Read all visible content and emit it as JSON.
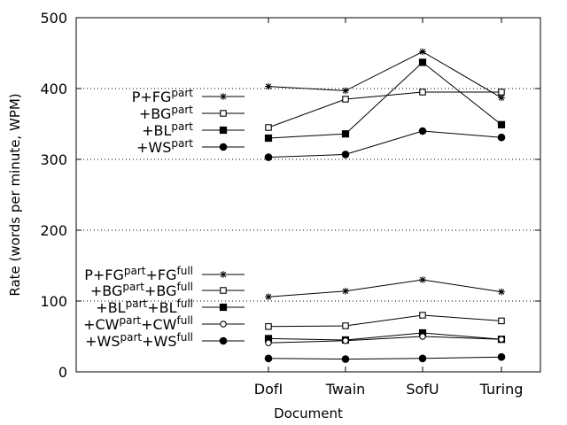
{
  "chart_data": {
    "type": "line",
    "xlabel": "Document",
    "ylabel": "Rate (words per minute, WPM)",
    "categories": [
      "DofI",
      "Twain",
      "SofU",
      "Turing"
    ],
    "ylim": [
      0,
      500
    ],
    "yticks": [
      0,
      100,
      200,
      300,
      400,
      500
    ],
    "grid": "horizontal-dotted",
    "legend_placement": "left",
    "series": [
      {
        "name": "P+FG",
        "name_parts": [
          {
            "t": "P+FG"
          },
          {
            "t": "part",
            "sup": true
          }
        ],
        "marker": "star",
        "values": [
          403,
          397,
          452,
          387
        ]
      },
      {
        "name": "+BG",
        "name_parts": [
          {
            "t": "+BG"
          },
          {
            "t": "part",
            "sup": true
          }
        ],
        "marker": "open-square",
        "values": [
          345,
          385,
          395,
          395
        ]
      },
      {
        "name": "+BL",
        "name_parts": [
          {
            "t": "+BL"
          },
          {
            "t": "part",
            "sup": true
          }
        ],
        "marker": "filled-square",
        "values": [
          330,
          336,
          437,
          349
        ]
      },
      {
        "name": "+WS",
        "name_parts": [
          {
            "t": "+WS"
          },
          {
            "t": "part",
            "sup": true
          }
        ],
        "marker": "filled-circle",
        "values": [
          303,
          307,
          340,
          331
        ]
      },
      {
        "name": "P+FG+FG",
        "name_parts": [
          {
            "t": "P+FG"
          },
          {
            "t": "part",
            "sup": true
          },
          {
            "t": "+FG"
          },
          {
            "t": "full",
            "sup": true
          }
        ],
        "marker": "star",
        "values": [
          106,
          114,
          130,
          113
        ]
      },
      {
        "name": "+BG+BG",
        "name_parts": [
          {
            "t": "+BG"
          },
          {
            "t": "part",
            "sup": true
          },
          {
            "t": "+BG"
          },
          {
            "t": "full",
            "sup": true
          }
        ],
        "marker": "open-square",
        "values": [
          64,
          65,
          80,
          72
        ]
      },
      {
        "name": "+BL+BL",
        "name_parts": [
          {
            "t": "+BL"
          },
          {
            "t": "part",
            "sup": true
          },
          {
            "t": "+BL"
          },
          {
            "t": "full",
            "sup": true
          }
        ],
        "marker": "filled-square",
        "values": [
          47,
          45,
          55,
          46
        ]
      },
      {
        "name": "+CW+CW",
        "name_parts": [
          {
            "t": "+CW"
          },
          {
            "t": "part",
            "sup": true
          },
          {
            "t": "+CW"
          },
          {
            "t": "full",
            "sup": true
          }
        ],
        "marker": "open-circle",
        "values": [
          41,
          44,
          50,
          46
        ]
      },
      {
        "name": "+WS+WS",
        "name_parts": [
          {
            "t": "+WS"
          },
          {
            "t": "part",
            "sup": true
          },
          {
            "t": "+WS"
          },
          {
            "t": "full",
            "sup": true
          }
        ],
        "marker": "filled-circle",
        "values": [
          19,
          18,
          19,
          21
        ]
      }
    ]
  }
}
